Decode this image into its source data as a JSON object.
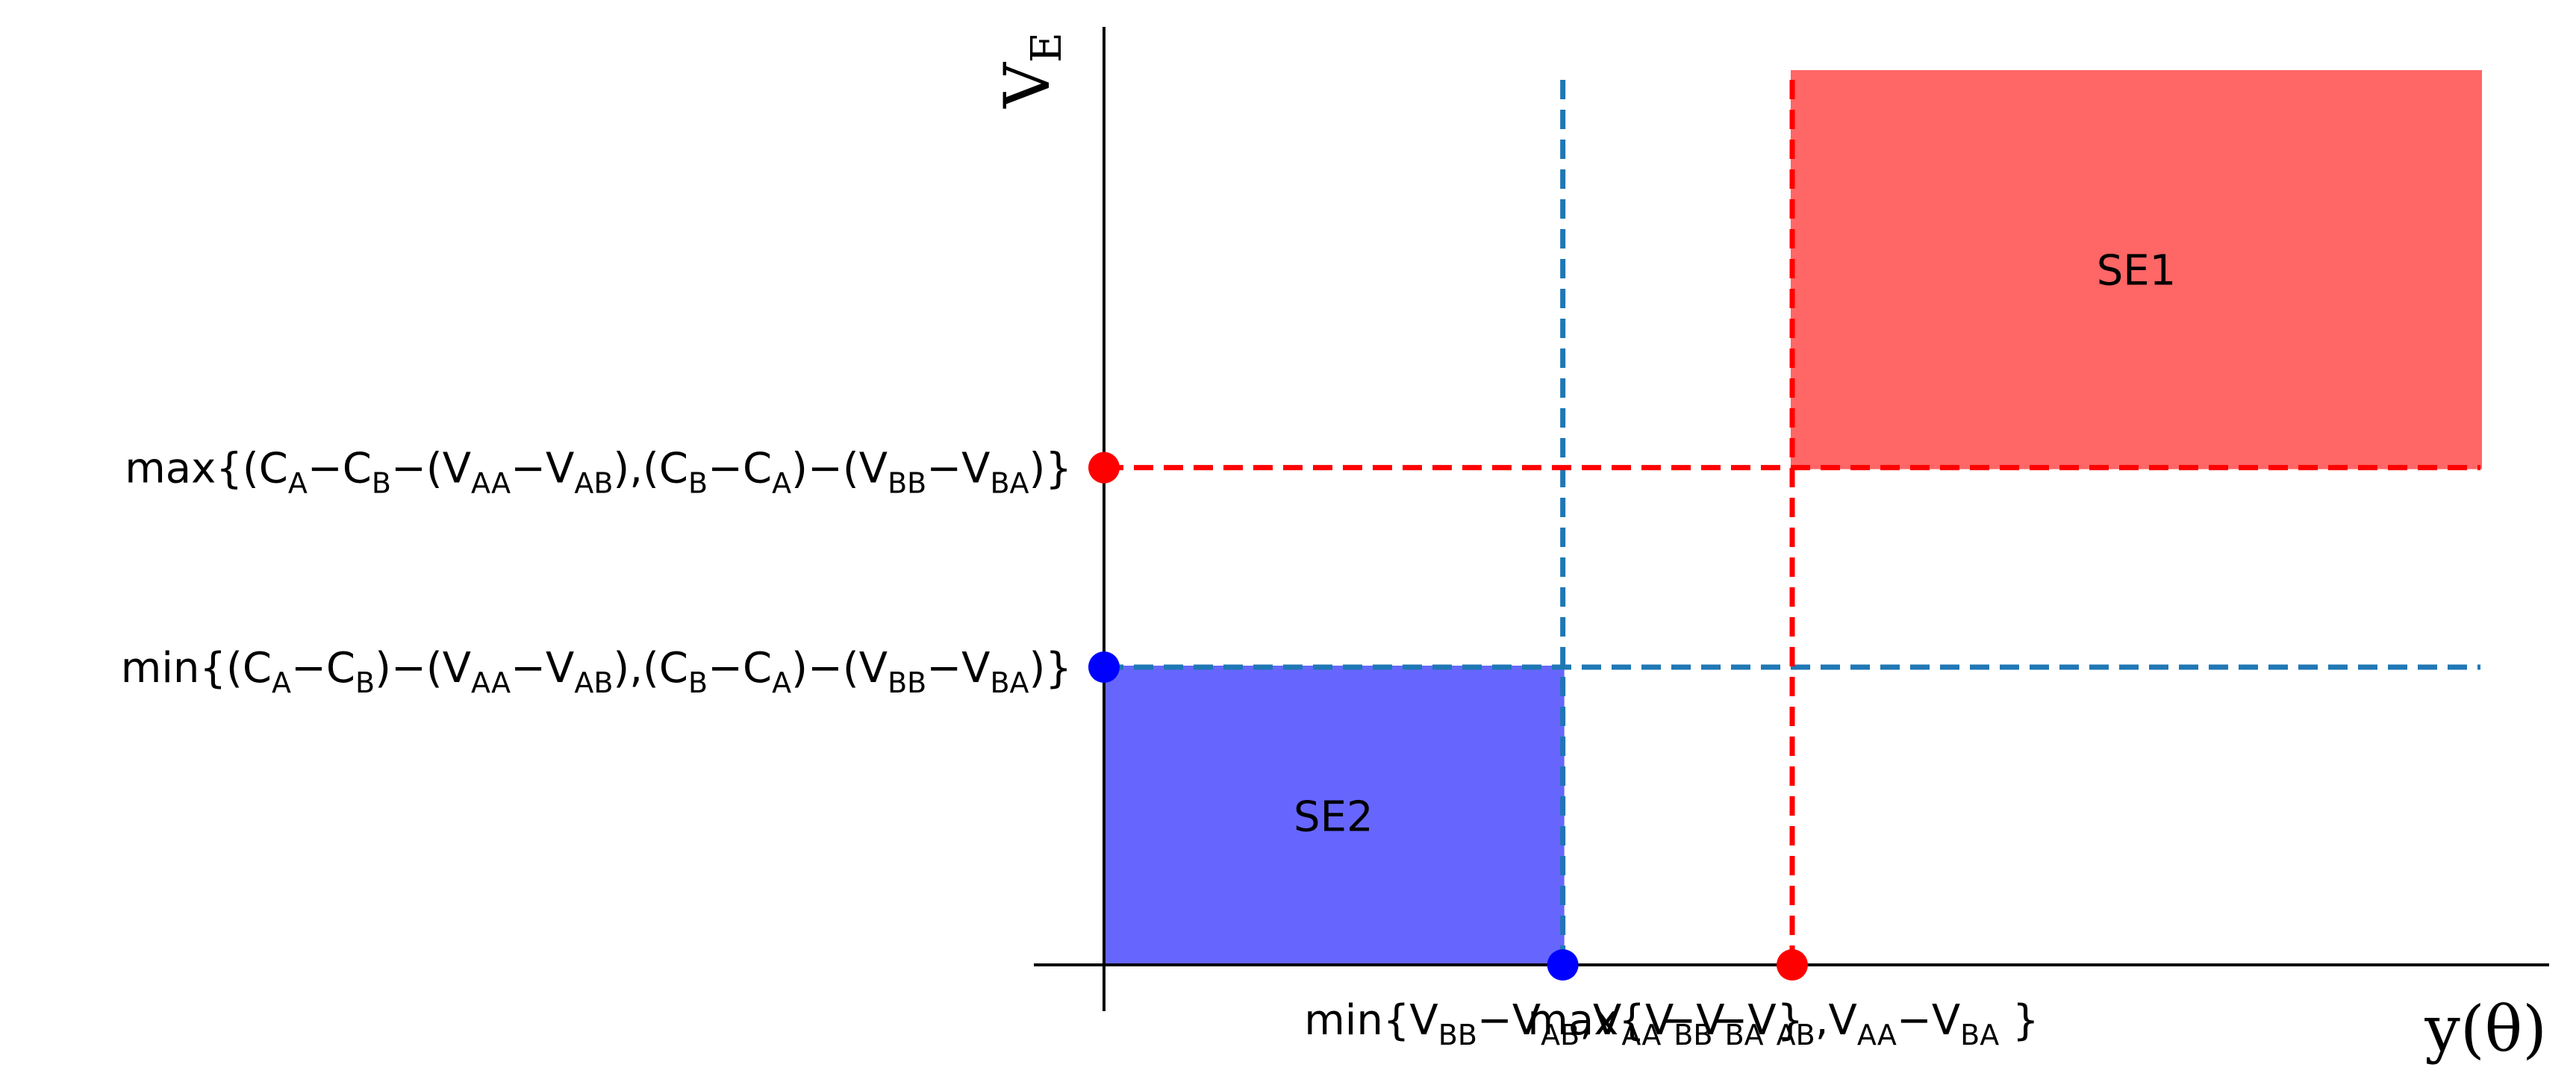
{
  "chart_data": {
    "type": "area",
    "xlabel": "y(θ)",
    "ylabel": "V",
    "ylabel_sub": "E",
    "xlim": [
      0,
      3
    ],
    "ylim": [
      0,
      3
    ],
    "grid": false,
    "x_ticks": [
      {
        "value": 1,
        "parts": [
          "min{V",
          "BB",
          "−V",
          "AB",
          ",V",
          "AA",
          "−V",
          "BA",
          " }"
        ]
      },
      {
        "value": 1.5,
        "parts": [
          "max{V",
          "BB",
          "−V",
          "AB",
          ",V",
          "AA",
          "−V",
          "BA",
          " }"
        ]
      }
    ],
    "y_ticks": [
      {
        "value": 1,
        "parts": [
          "min{(C",
          "A",
          "−C",
          "B",
          ")−(V",
          "AA",
          "−V",
          "AB",
          "),(C",
          "B",
          "−C",
          "A",
          ")−(V",
          "BB",
          "−V",
          "BA",
          ")}"
        ]
      },
      {
        "value": 1.67,
        "parts": [
          "max{(C",
          "A",
          "−C",
          "B",
          "−(V",
          "AA",
          "−V",
          "AB",
          "),(C",
          "B",
          "−C",
          "A",
          ")−(V",
          "BB",
          "−V",
          "BA",
          ")}"
        ]
      }
    ],
    "regions": [
      {
        "label": "SE1",
        "x": [
          1.5,
          3.0
        ],
        "y": [
          1.67,
          3.0
        ],
        "color": "#ff6666"
      },
      {
        "label": "SE2",
        "x": [
          0,
          1.0
        ],
        "y": [
          0,
          1.0
        ],
        "color": "#6666ff"
      }
    ],
    "guide_lines": [
      {
        "axis": "x",
        "value": 1.0,
        "y_range": [
          0,
          3.0
        ],
        "color": "#1f77b4"
      },
      {
        "axis": "y",
        "value": 1.0,
        "x_range": [
          0,
          3.0
        ],
        "color": "#1f77b4"
      },
      {
        "axis": "x",
        "value": 1.5,
        "y_range": [
          0,
          3.0
        ],
        "color": "#ff0000"
      },
      {
        "axis": "y",
        "value": 1.67,
        "x_range": [
          0,
          3.0
        ],
        "color": "#ff0000"
      }
    ],
    "points": [
      {
        "x": 0,
        "y": 1.0,
        "color": "#0000ff"
      },
      {
        "x": 1.0,
        "y": 0,
        "color": "#0000ff"
      },
      {
        "x": 0,
        "y": 1.67,
        "color": "#ff0000"
      },
      {
        "x": 1.5,
        "y": 0,
        "color": "#ff0000"
      }
    ]
  }
}
